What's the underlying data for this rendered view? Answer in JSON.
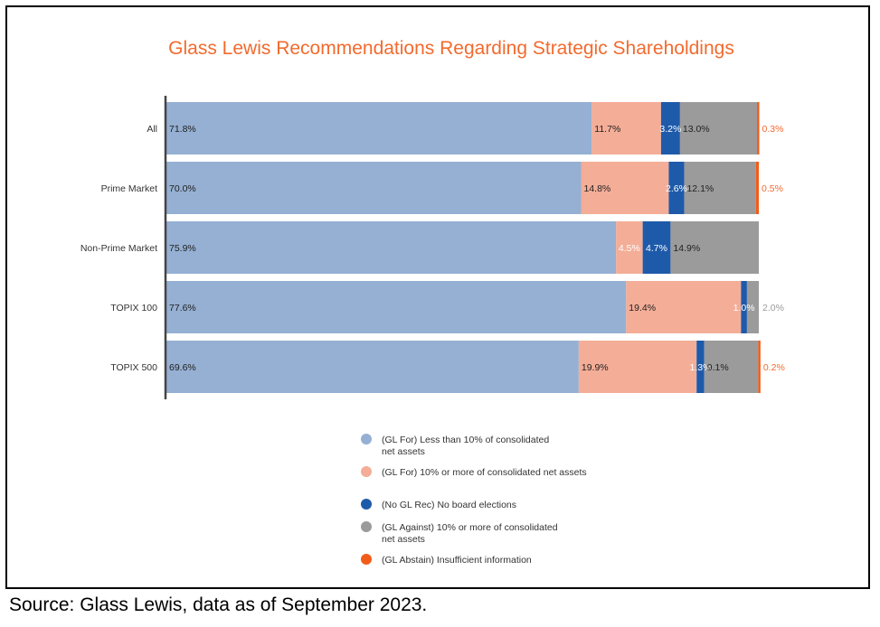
{
  "colors": {
    "title": "#f26a2e",
    "for_lt10": "#95b0d3",
    "for_ge10": "#f4ad97",
    "no_rec": "#1e5aaa",
    "against": "#9b9b9b",
    "abstain": "#f25c19",
    "label_dark": "#222222",
    "label_light": "#ffffff",
    "outside_gray": "#9b9b9b",
    "outside_orange": "#f26a2e"
  },
  "chart_data": {
    "type": "bar",
    "orientation": "horizontal",
    "stacked": true,
    "title": "Glass Lewis Recommendations Regarding Strategic Shareholdings",
    "xlim": [
      0,
      100
    ],
    "grid": false,
    "legend_position": "bottom",
    "categories": [
      "All",
      "Prime Market",
      "Non-Prime Market",
      "TOPIX 100",
      "TOPIX 500"
    ],
    "series": [
      {
        "name": "(GL For) Less than 10% of consolidated net assets",
        "color_key": "for_lt10",
        "values": [
          71.8,
          70.0,
          75.9,
          77.6,
          69.6
        ],
        "labels": [
          "71.8%",
          "70.0%",
          "75.9%",
          "77.6%",
          "69.6%"
        ]
      },
      {
        "name": "(GL For) 10% or more of consolidated net assets",
        "color_key": "for_ge10",
        "values": [
          11.7,
          14.8,
          4.5,
          19.4,
          19.9
        ],
        "labels": [
          "11.7%",
          "14.8%",
          "4.5%",
          "19.4%",
          "19.9%"
        ]
      },
      {
        "name": "(No GL Rec) No board elections",
        "color_key": "no_rec",
        "values": [
          3.2,
          2.6,
          4.7,
          1.0,
          1.3
        ],
        "labels": [
          "3.2%",
          "2.6%",
          "4.7%",
          "1.0%",
          "1.3%"
        ]
      },
      {
        "name": "(GL Against) 10% or more of consolidated net assets",
        "color_key": "against",
        "values": [
          13.0,
          12.1,
          14.9,
          2.0,
          9.1
        ],
        "labels": [
          "13.0%",
          "12.1%",
          "14.9%",
          "2.0%",
          "9.1%"
        ]
      },
      {
        "name": "(GL Abstain) Insufficient information",
        "color_key": "abstain",
        "values": [
          0.3,
          0.5,
          0.0,
          0.0,
          0.2
        ],
        "labels": [
          "0.3%",
          "0.5%",
          "",
          "",
          "0.2%"
        ]
      }
    ]
  },
  "source_note": "Source: Glass Lewis, data as of September 2023."
}
